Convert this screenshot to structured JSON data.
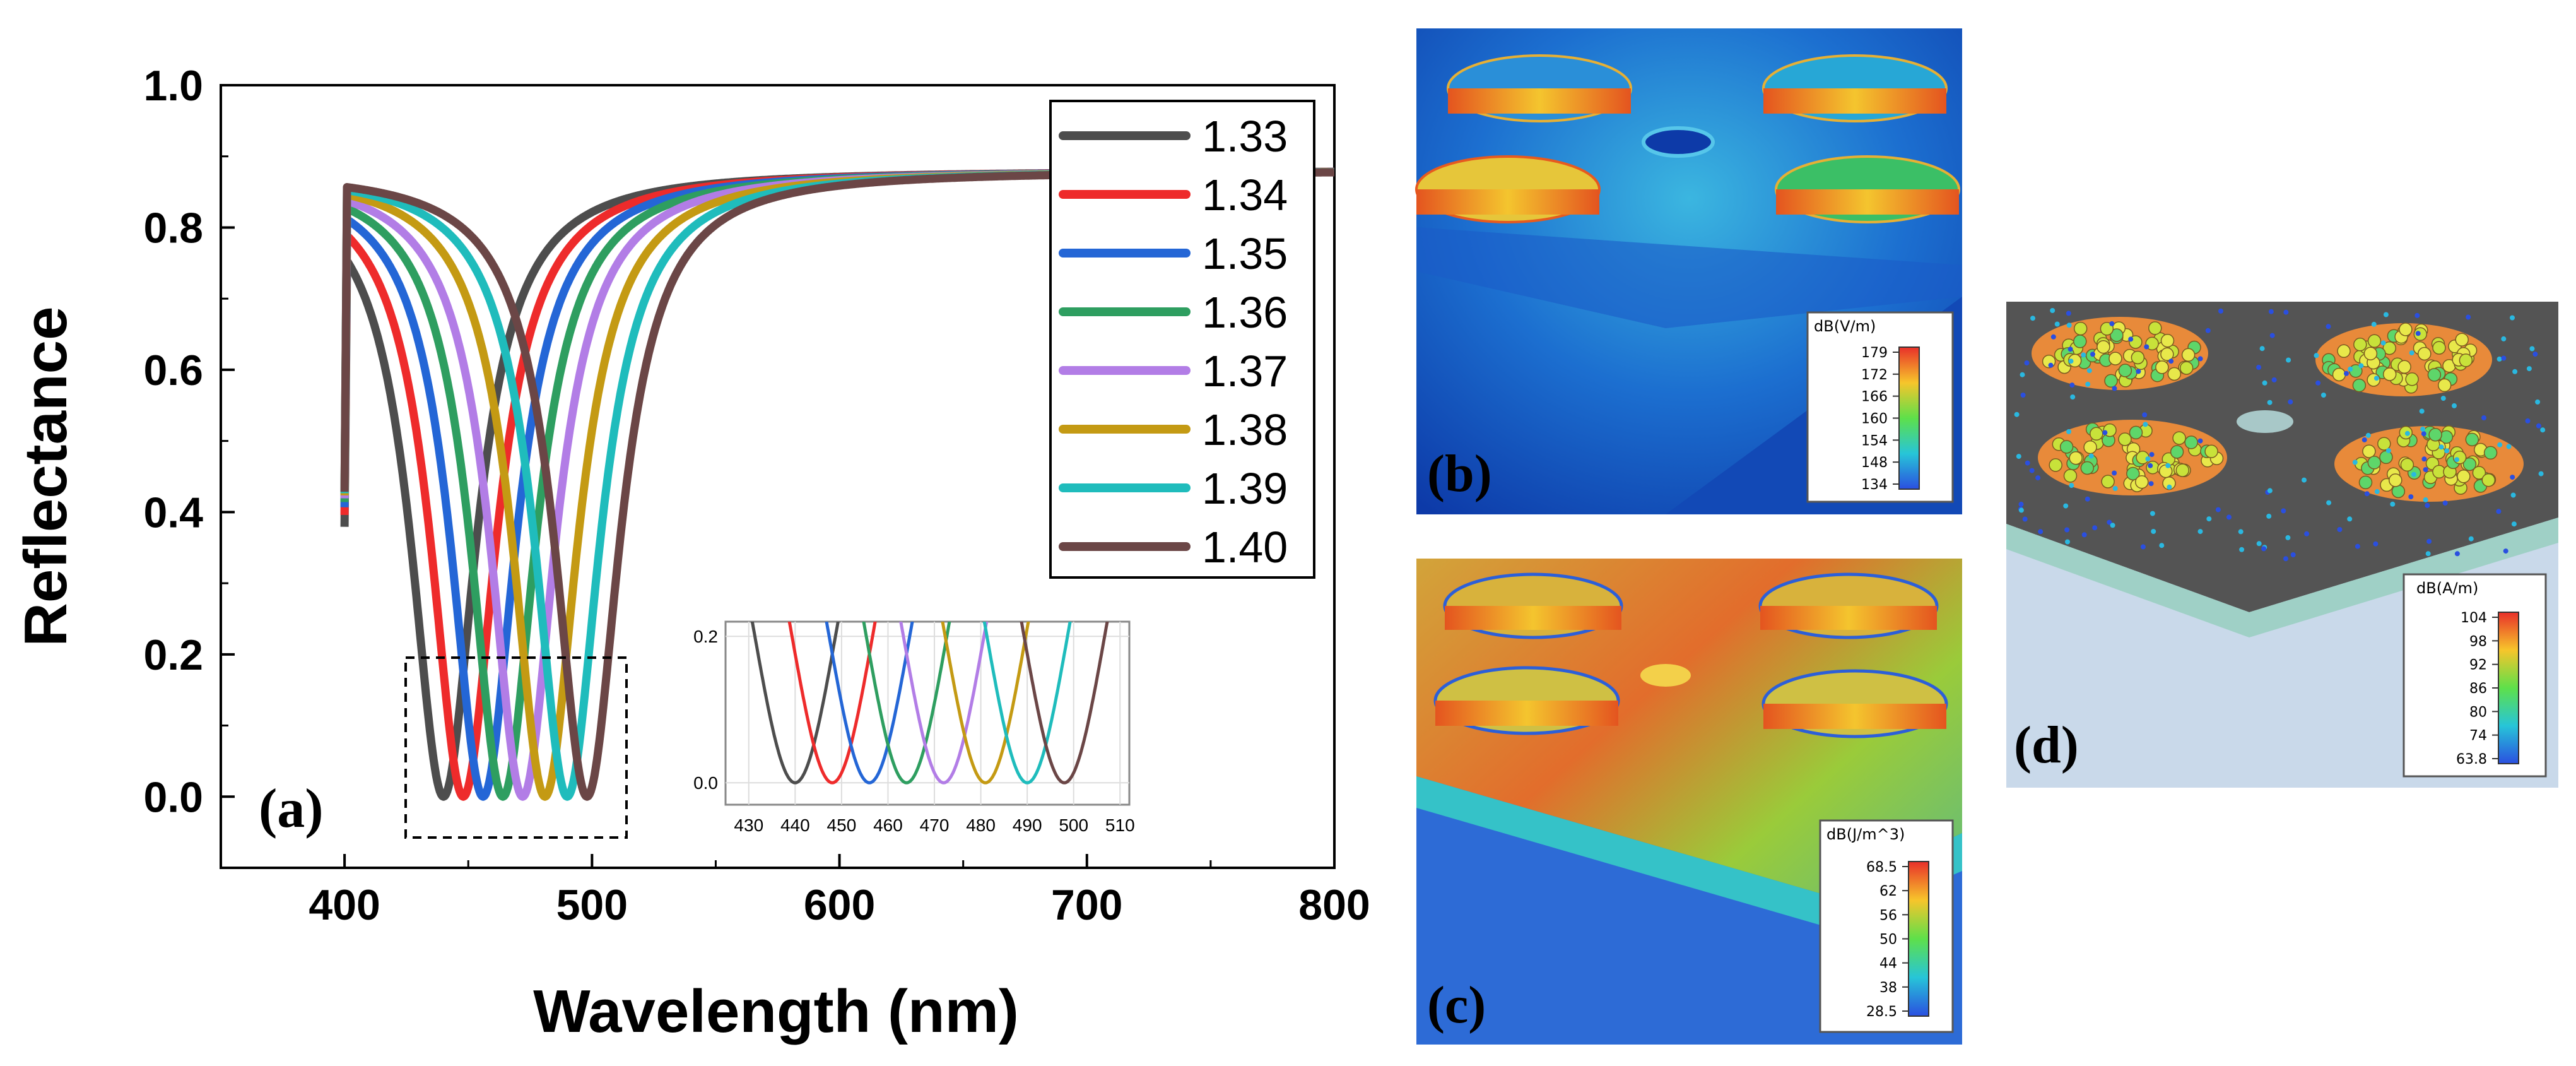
{
  "chart_data": {
    "type": "line",
    "xlabel": "Wavelength (nm)",
    "ylabel": "Reflectance",
    "xlim": [
      350,
      800
    ],
    "ylim": [
      -0.1,
      1.0
    ],
    "xticks": [
      "400",
      "500",
      "600",
      "700",
      "800"
    ],
    "yticks": [
      "0.0",
      "0.2",
      "0.4",
      "0.6",
      "0.8",
      "1.0"
    ],
    "baseline_reflectance": 0.88,
    "dip_half_width_nm": 16,
    "series": [
      {
        "name": "1.33",
        "color": "#4d4d4d",
        "resonance_nm": 440
      },
      {
        "name": "1.34",
        "color": "#ee2b2b",
        "resonance_nm": 448
      },
      {
        "name": "1.35",
        "color": "#2466d6",
        "resonance_nm": 456
      },
      {
        "name": "1.36",
        "color": "#2e9e60",
        "resonance_nm": 464
      },
      {
        "name": "1.37",
        "color": "#b27de6",
        "resonance_nm": 472
      },
      {
        "name": "1.38",
        "color": "#c49a13",
        "resonance_nm": 481
      },
      {
        "name": "1.39",
        "color": "#1fbcbc",
        "resonance_nm": 490
      },
      {
        "name": "1.40",
        "color": "#6b4646",
        "resonance_nm": 498
      }
    ],
    "legend": "top-right",
    "inset": {
      "xlim": [
        425,
        512
      ],
      "ylim": [
        -0.03,
        0.22
      ],
      "xticks": [
        "430",
        "440",
        "450",
        "460",
        "470",
        "480",
        "490",
        "500",
        "510"
      ],
      "yticks": [
        "0.0",
        "0.2"
      ]
    }
  },
  "panels": {
    "a_label": "(a)",
    "b": {
      "label": "(b)",
      "unit": "dB(V/m)",
      "ticks": [
        "179",
        "172",
        "166",
        "160",
        "154",
        "148",
        "134"
      ]
    },
    "c": {
      "label": "(c)",
      "unit": "dB(J/m^3)",
      "ticks": [
        "68.5",
        "62",
        "56",
        "50",
        "44",
        "38",
        "28.5"
      ]
    },
    "d": {
      "label": "(d)",
      "unit": "dB(A/m)",
      "ticks": [
        "104",
        "98",
        "92",
        "86",
        "80",
        "74",
        "63.8"
      ]
    }
  }
}
